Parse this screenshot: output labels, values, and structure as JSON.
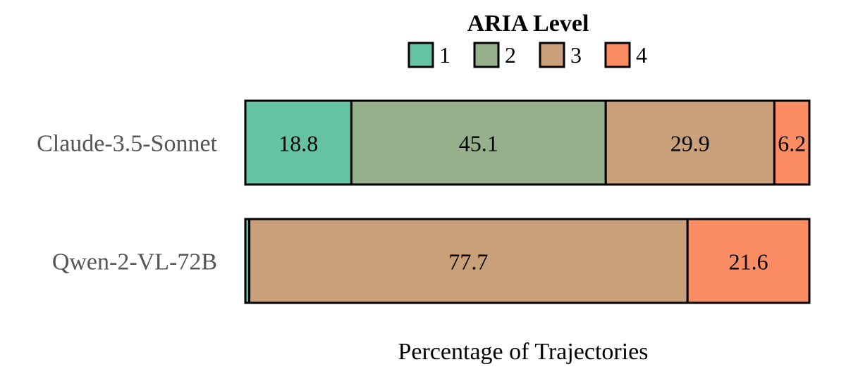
{
  "chart_data": {
    "type": "bar",
    "orientation": "horizontal",
    "stacked": true,
    "legend": {
      "title": "ARIA Level",
      "placement": "top-center",
      "entries": [
        "1",
        "2",
        "3",
        "4"
      ]
    },
    "categories": [
      "Claude-3.5-Sonnet",
      "Qwen-2-VL-72B"
    ],
    "series": [
      {
        "name": "1",
        "values": [
          18.8,
          0.7
        ],
        "labels": [
          "18.8",
          ""
        ]
      },
      {
        "name": "2",
        "values": [
          45.1,
          0.0
        ],
        "labels": [
          "45.1",
          ""
        ]
      },
      {
        "name": "3",
        "values": [
          29.9,
          77.7
        ],
        "labels": [
          "29.9",
          "77.7"
        ]
      },
      {
        "name": "4",
        "values": [
          6.2,
          21.6
        ],
        "labels": [
          "6.2",
          "21.6"
        ]
      }
    ],
    "colors": [
      "#66c2a5",
      "#97b08c",
      "#c9a07a",
      "#fc8d62"
    ],
    "xlabel": "Percentage of Trajectories",
    "ylabel": "",
    "xlim": [
      0,
      100
    ],
    "grid": false,
    "axes_visible": false
  }
}
